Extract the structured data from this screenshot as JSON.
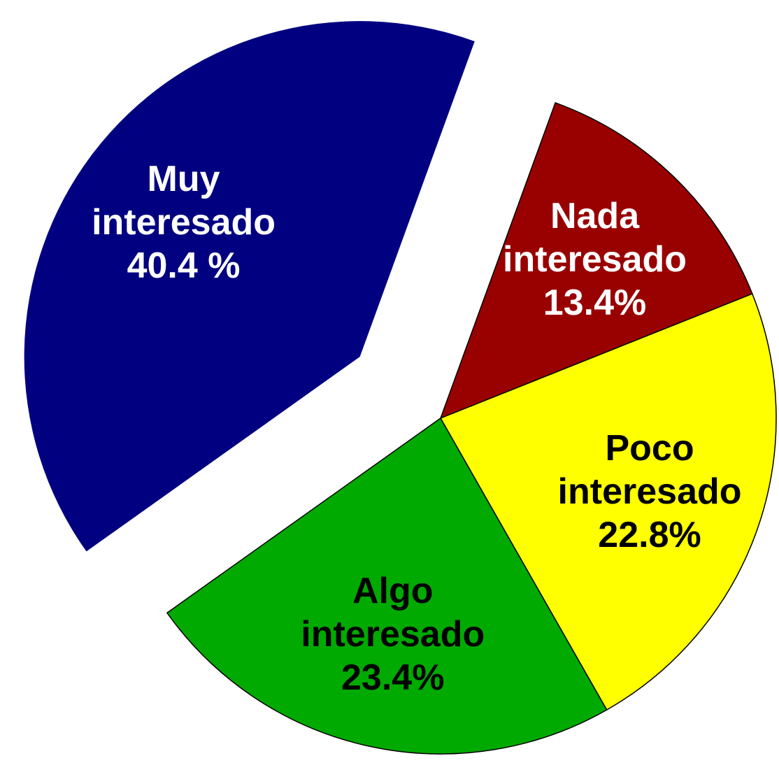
{
  "chart_data": {
    "type": "pie",
    "categories": [
      "Nada interesado",
      "Poco interesado",
      "Algo interesado",
      "Muy interesado"
    ],
    "values": [
      13.4,
      22.8,
      23.4,
      40.4
    ],
    "value_labels": [
      "13.4%",
      "22.8%",
      "23.4%",
      "40.4 %"
    ],
    "colors": [
      "#990000",
      "#ffff00",
      "#00aa00",
      "#000080"
    ],
    "label_colors": [
      "#ffffff",
      "#000000",
      "#000000",
      "#ffffff"
    ]
  }
}
